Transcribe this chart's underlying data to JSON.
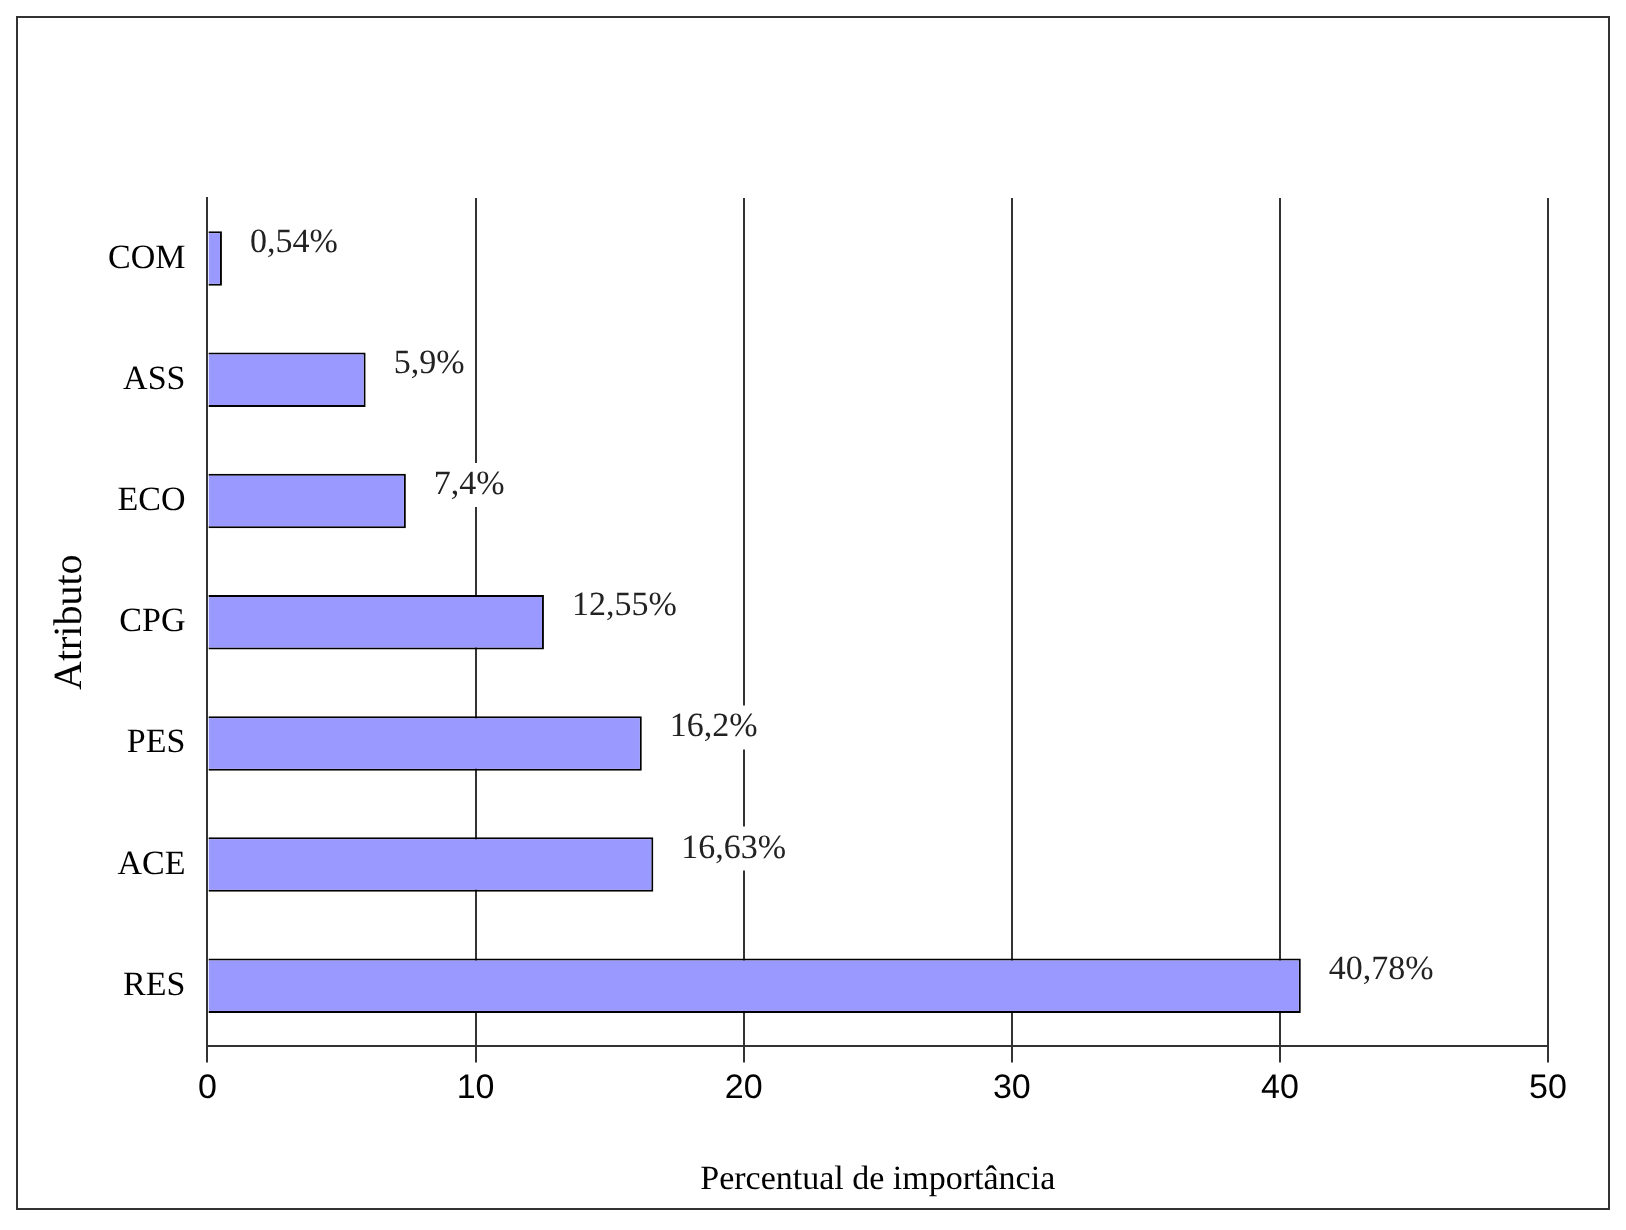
{
  "chart_data": {
    "type": "bar",
    "orientation": "horizontal",
    "xlabel": "Percentual de importância",
    "ylabel": "Atributo",
    "categories": [
      "COM",
      "ASS",
      "ECO",
      "CPG",
      "PES",
      "ACE",
      "RES"
    ],
    "values": [
      0.54,
      5.9,
      7.4,
      12.55,
      16.2,
      16.63,
      40.78
    ],
    "value_labels": [
      "0,54%",
      "5,9%",
      "7,4%",
      "12,55%",
      "16,2%",
      "16,63%",
      "40,78%"
    ],
    "color": "#9999ff",
    "xlim": [
      0,
      50
    ],
    "xticks": [
      0,
      10,
      20,
      30,
      40,
      50
    ],
    "grid": "x"
  }
}
